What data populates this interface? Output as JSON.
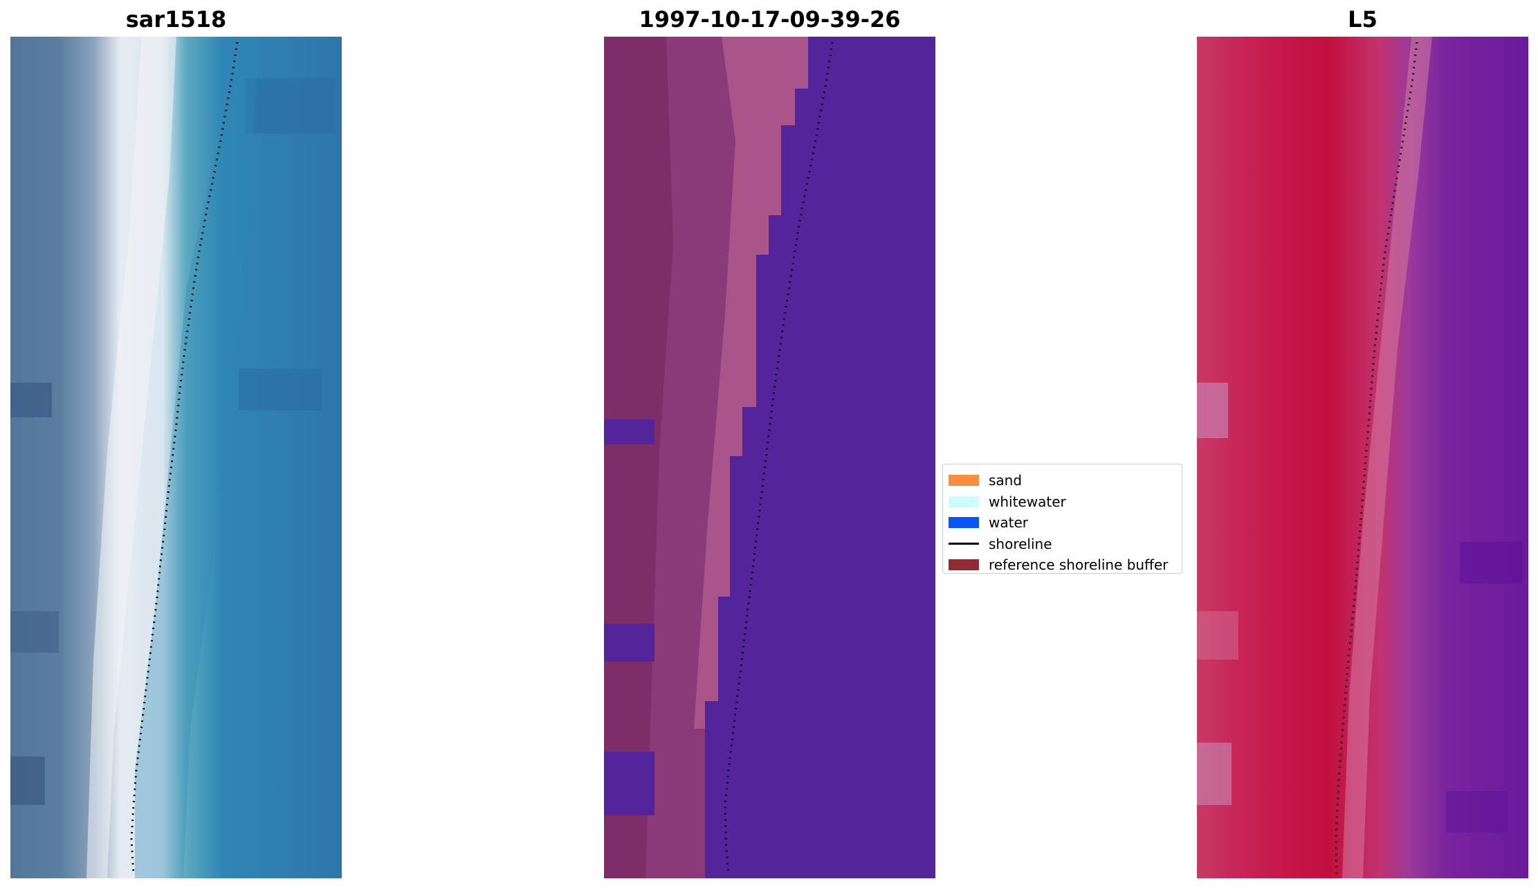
{
  "panels": [
    {
      "title": "sar1518"
    },
    {
      "title": "1997-10-17-09-39-26"
    },
    {
      "title": "L5"
    }
  ],
  "legend": {
    "items": [
      {
        "label": "sand",
        "kind": "patch",
        "color": "#fd8c3c"
      },
      {
        "label": "whitewater",
        "kind": "patch",
        "color": "#ccfcfc"
      },
      {
        "label": "water",
        "kind": "patch",
        "color": "#0856f7"
      },
      {
        "label": "shoreline",
        "kind": "line",
        "color": "#000000"
      },
      {
        "label": "reference shoreline buffer",
        "kind": "patch",
        "color": "#902a33"
      }
    ]
  },
  "colors": {
    "rgb_sea": "#2f77a9",
    "rgb_beach": "#f2f0f6",
    "classified_land": "#7e2d6a",
    "classified_water": "#54249a",
    "false_colour_land": "#c0143f",
    "false_colour_water": "#6a1a9c"
  }
}
